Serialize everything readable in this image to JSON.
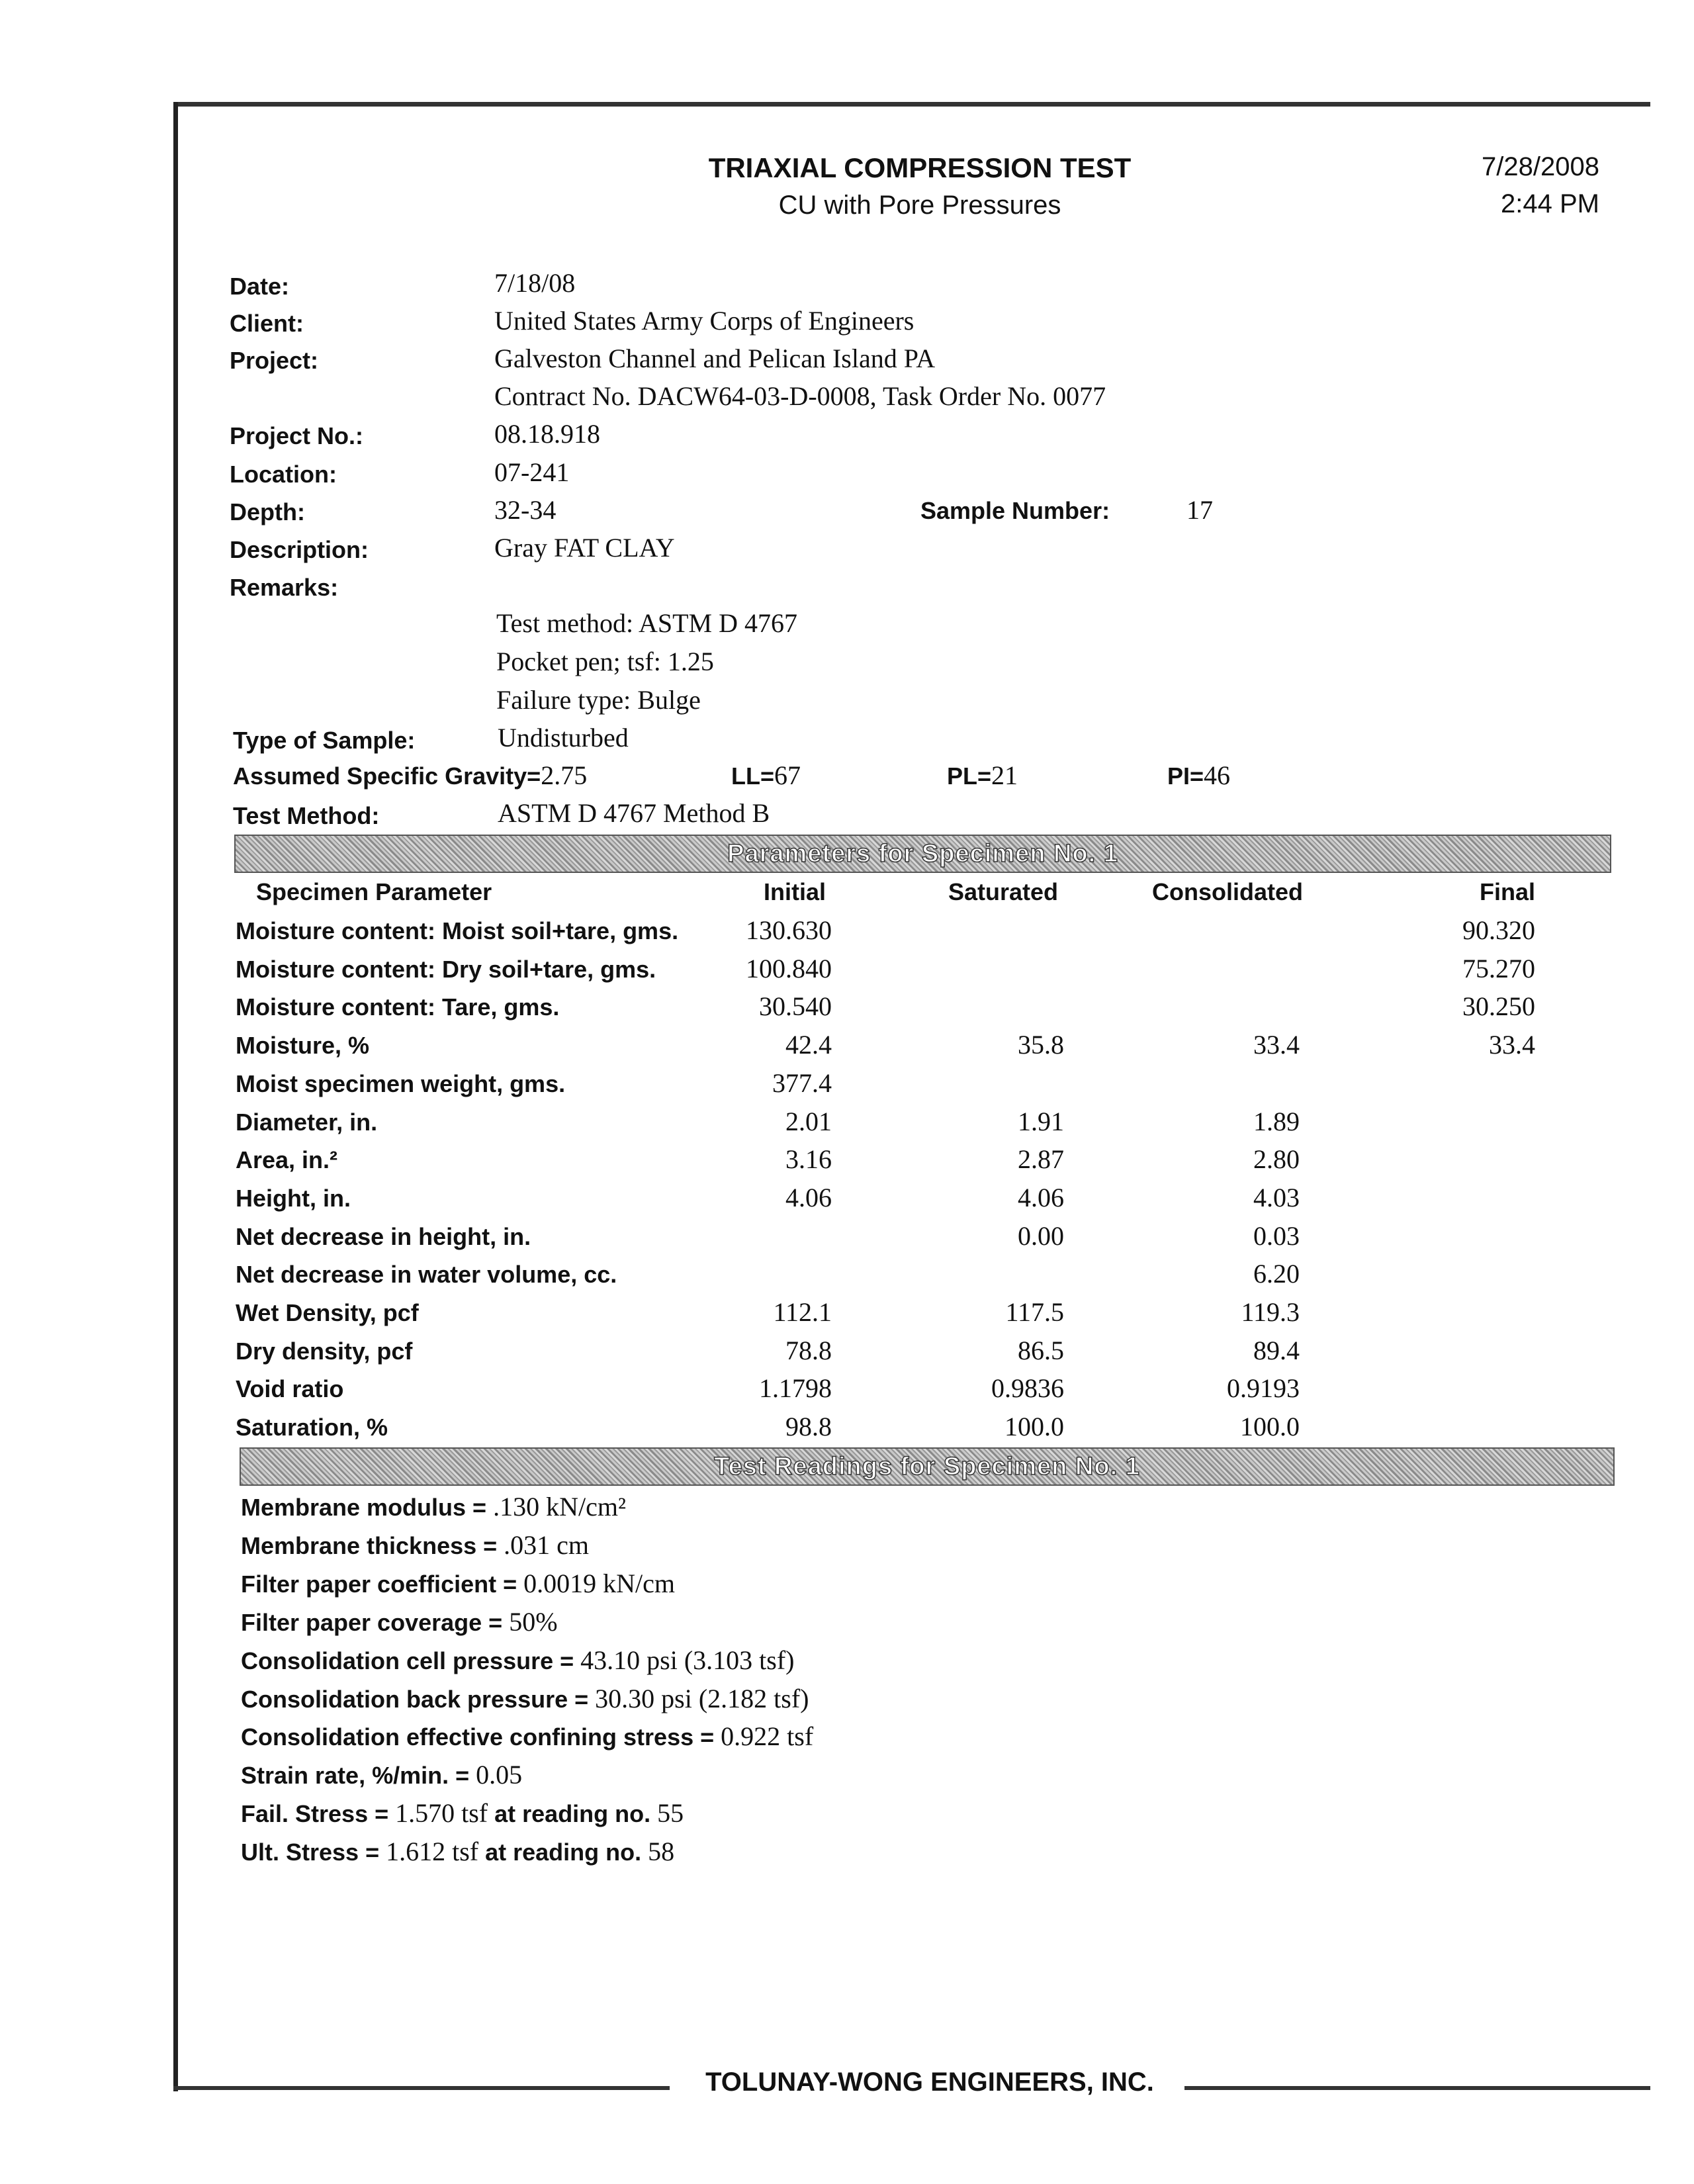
{
  "header": {
    "title": "TRIAXIAL COMPRESSION TEST",
    "subtitle": "CU with Pore Pressures",
    "print_date": "7/28/2008",
    "print_time": "2:44 PM"
  },
  "info": {
    "date_label": "Date:",
    "date": "7/18/08",
    "client_label": "Client:",
    "client": "United States Army Corps of Engineers",
    "project_label": "Project:",
    "project": "Galveston Channel and Pelican Island PA",
    "contract": "Contract No. DACW64-03-D-0008, Task Order No. 0077",
    "project_no_label": "Project No.:",
    "project_no": "08.18.918",
    "location_label": "Location:",
    "location": "07-241",
    "depth_label": "Depth:",
    "depth": "32-34",
    "sample_number_label": "Sample Number:",
    "sample_number": "17",
    "description_label": "Description:",
    "description": "Gray FAT CLAY",
    "remarks_label": "Remarks:",
    "remarks": [
      "Test method: ASTM D 4767",
      "Pocket pen; tsf: 1.25",
      "Failure type: Bulge"
    ],
    "type_label": "Type of Sample:",
    "type": "Undisturbed",
    "gravity_label": "Assumed Specific Gravity=",
    "gravity": "2.75",
    "ll_label": "LL=",
    "ll": "67",
    "pl_label": "PL=",
    "pl": "21",
    "pi_label": "PI=",
    "pi": "46",
    "test_method_label": "Test Method:",
    "test_method": "ASTM D 4767 Method B"
  },
  "parameters": {
    "band_title": "Parameters for Specimen No. 1",
    "columns": [
      "Specimen Parameter",
      "Initial",
      "Saturated",
      "Consolidated",
      "Final"
    ],
    "rows": [
      {
        "name": "Moisture content: Moist soil+tare, gms.",
        "values": [
          "130.630",
          "",
          "",
          "90.320"
        ]
      },
      {
        "name": "Moisture content: Dry soil+tare, gms.",
        "values": [
          "100.840",
          "",
          "",
          "75.270"
        ]
      },
      {
        "name": "Moisture content: Tare, gms.",
        "values": [
          "30.540",
          "",
          "",
          "30.250"
        ]
      },
      {
        "name": "Moisture, %",
        "values": [
          "42.4",
          "35.8",
          "33.4",
          "33.4"
        ]
      },
      {
        "name": "Moist specimen weight, gms.",
        "values": [
          "377.4",
          "",
          "",
          ""
        ]
      },
      {
        "name": "Diameter, in.",
        "values": [
          "2.01",
          "1.91",
          "1.89",
          ""
        ]
      },
      {
        "name": "Area, in.²",
        "values": [
          "3.16",
          "2.87",
          "2.80",
          ""
        ]
      },
      {
        "name": "Height, in.",
        "values": [
          "4.06",
          "4.06",
          "4.03",
          ""
        ]
      },
      {
        "name": "Net decrease in height, in.",
        "values": [
          "",
          "0.00",
          "0.03",
          ""
        ]
      },
      {
        "name": "Net decrease in water volume, cc.",
        "values": [
          "",
          "",
          "6.20",
          ""
        ]
      },
      {
        "name": "Wet Density, pcf",
        "values": [
          "112.1",
          "117.5",
          "119.3",
          ""
        ]
      },
      {
        "name": "Dry density, pcf",
        "values": [
          "78.8",
          "86.5",
          "89.4",
          ""
        ]
      },
      {
        "name": "Void ratio",
        "values": [
          "1.1798",
          "0.9836",
          "0.9193",
          ""
        ]
      },
      {
        "name": "Saturation, %",
        "values": [
          "98.8",
          "100.0",
          "100.0",
          ""
        ]
      }
    ]
  },
  "readings": {
    "band_title": "Test Readings for Specimen No. 1",
    "items": [
      {
        "label": "Membrane modulus = ",
        "value": ".130 kN/cm²",
        "label2": "",
        "value2": ""
      },
      {
        "label": "Membrane thickness = ",
        "value": ".031 cm",
        "label2": "",
        "value2": ""
      },
      {
        "label": "Filter paper coefficient = ",
        "value": "0.0019 kN/cm",
        "label2": "",
        "value2": ""
      },
      {
        "label": "Filter paper coverage = ",
        "value": "50%",
        "label2": "",
        "value2": ""
      },
      {
        "label": "Consolidation cell pressure = ",
        "value": "43.10 psi (3.103 tsf)",
        "label2": "",
        "value2": ""
      },
      {
        "label": "Consolidation back pressure = ",
        "value": "30.30 psi (2.182 tsf)",
        "label2": "",
        "value2": ""
      },
      {
        "label": "Consolidation effective confining stress = ",
        "value": "0.922 tsf",
        "label2": "",
        "value2": ""
      },
      {
        "label": "Strain rate, %/min. = ",
        "value": "0.05",
        "label2": "",
        "value2": ""
      },
      {
        "label": "Fail. Stress = ",
        "value": "1.570 tsf",
        "label2": " at reading no.",
        "value2": " 55"
      },
      {
        "label": "Ult. Stress = ",
        "value": "1.612 tsf",
        "label2": " at reading no.",
        "value2": " 58"
      }
    ]
  },
  "footer": {
    "company": "TOLUNAY-WONG ENGINEERS, INC."
  }
}
